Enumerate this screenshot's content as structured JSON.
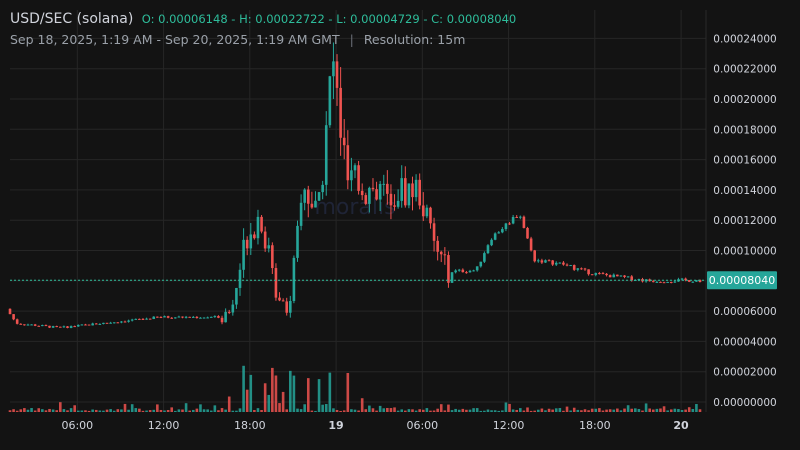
{
  "header": {
    "symbol": "USD/SEC (solana)",
    "ohlc": "O: 0.00006148 - H: 0.00022722 - L: 0.00004729 - C: 0.00008040",
    "range": "Sep 18, 2025, 1:19 AM - Sep 20, 2025, 1:19 AM GMT",
    "separator": "|",
    "resolution": "Resolution: 15m"
  },
  "watermark": "moralis",
  "colors": {
    "background": "#131313",
    "up": "#26a69a",
    "down": "#ef5350",
    "grid": "#262626",
    "axis_text": "#d1d4dc",
    "price_line": "#2ebd9b",
    "price_badge": "#26a69a"
  },
  "chart_data": {
    "type": "candlestick",
    "y_ticks": [
      "0.00024000",
      "0.00022000",
      "0.00020000",
      "0.00018000",
      "0.00016000",
      "0.00014000",
      "0.00012000",
      "0.00010000",
      "0.00008000",
      "0.00006000",
      "0.00004000",
      "0.00002000",
      "0.00000000"
    ],
    "x_ticks": [
      {
        "label": "06:00",
        "bold": false
      },
      {
        "label": "12:00",
        "bold": false
      },
      {
        "label": "18:00",
        "bold": false
      },
      {
        "label": "19",
        "bold": true
      },
      {
        "label": "06:00",
        "bold": false
      },
      {
        "label": "12:00",
        "bold": false
      },
      {
        "label": "18:00",
        "bold": false
      },
      {
        "label": "20",
        "bold": true
      }
    ],
    "last_price_label": "0.00008040",
    "last_price": 8.04e-05,
    "open": 6.148e-05,
    "high": 0.00022722,
    "low": 4.729e-05,
    "close": 8.04e-05,
    "ylim": [
      0,
      0.00025
    ],
    "grid": true,
    "interval": "15m",
    "key_points": [
      {
        "time": "Sep 18 01:19",
        "price": 6.15e-05
      },
      {
        "time": "Sep 18 02:00",
        "price": 5.2e-05
      },
      {
        "time": "Sep 18 05:00",
        "price": 4.9e-05
      },
      {
        "time": "Sep 18 09:00",
        "price": 5.3e-05
      },
      {
        "time": "Sep 18 12:00",
        "price": 5.6e-05
      },
      {
        "time": "Sep 18 16:00",
        "price": 5.6e-05
      },
      {
        "time": "Sep 18 17:00",
        "price": 6e-05
      },
      {
        "time": "Sep 18 18:00",
        "price": 0.00011
      },
      {
        "time": "Sep 18 19:00",
        "price": 0.000125
      },
      {
        "time": "Sep 18 20:00",
        "price": 7.5e-05
      },
      {
        "time": "Sep 18 21:00",
        "price": 6.2e-05
      },
      {
        "time": "Sep 18 22:00",
        "price": 0.000145
      },
      {
        "time": "Sep 18 23:00",
        "price": 0.00012
      },
      {
        "time": "Sep 19 00:00",
        "price": 0.000227
      },
      {
        "time": "Sep 19 01:00",
        "price": 0.000145
      },
      {
        "time": "Sep 19 03:00",
        "price": 0.00014
      },
      {
        "time": "Sep 19 06:00",
        "price": 0.00014
      },
      {
        "time": "Sep 19 07:00",
        "price": 0.000105
      },
      {
        "time": "Sep 19 08:00",
        "price": 8.6e-05
      },
      {
        "time": "Sep 19 10:00",
        "price": 8.7e-05
      },
      {
        "time": "Sep 19 11:00",
        "price": 0.000108
      },
      {
        "time": "Sep 19 13:00",
        "price": 0.000125
      },
      {
        "time": "Sep 19 14:00",
        "price": 9.4e-05
      },
      {
        "time": "Sep 19 16:00",
        "price": 9.1e-05
      },
      {
        "time": "Sep 19 18:00",
        "price": 8.5e-05
      },
      {
        "time": "Sep 19 22:00",
        "price": 8e-05
      },
      {
        "time": "Sep 20 01:19",
        "price": 8.04e-05
      }
    ]
  }
}
